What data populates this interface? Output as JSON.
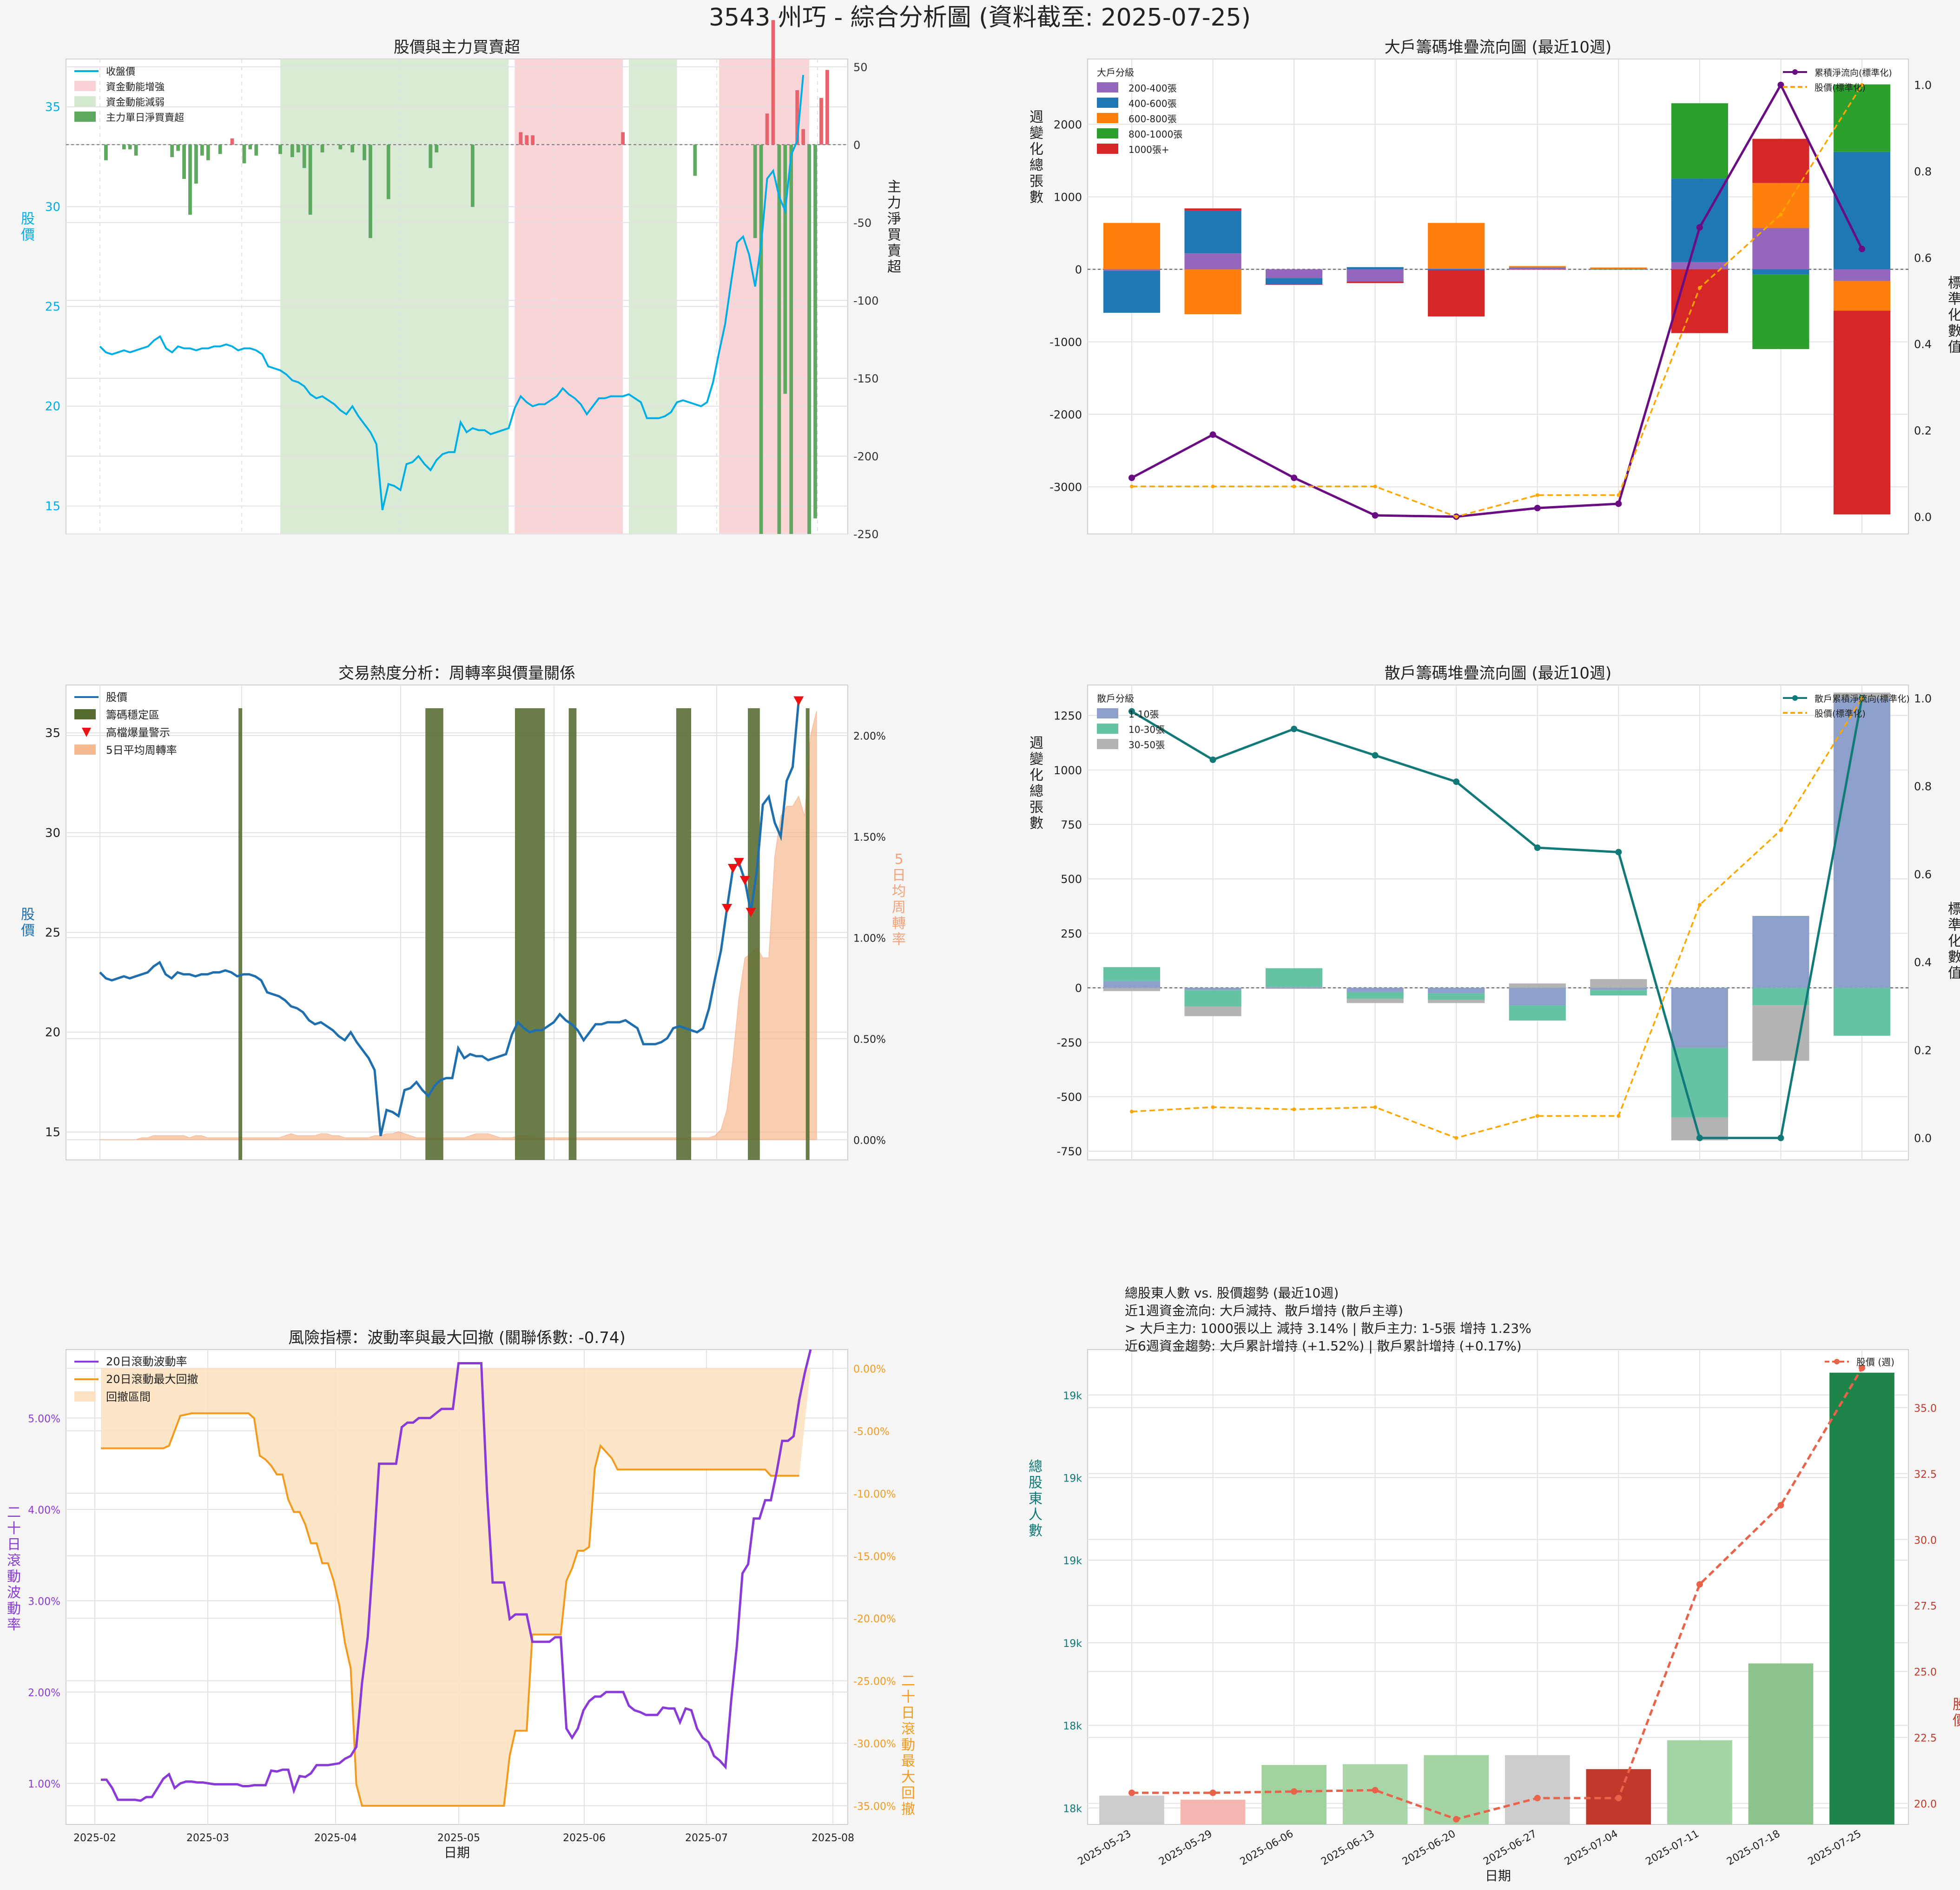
{
  "page_title": "3543 州巧 - 綜合分析圖 (資料截至: 2025-07-25)",
  "chart_data": [
    {
      "id": "p1",
      "type": "line+bar",
      "title": "股價與主力買賣超",
      "ylabel_left": "股價",
      "ylabel_right": "主力淨買賣超",
      "y_left": [
        13.6,
        37.4
      ],
      "y_left_ticks": [
        "15",
        "20",
        "25",
        "30",
        "35"
      ],
      "y_left_tick_values": [
        15,
        20,
        25,
        30,
        35
      ],
      "y_right": [
        -250,
        55
      ],
      "y_right_ticks": [
        "50",
        "0",
        "-50",
        "-100",
        "-150",
        "-200",
        "-250"
      ],
      "y_right_tick_values": [
        50,
        0,
        -50,
        -100,
        -150,
        -200,
        -250
      ],
      "legend": [
        "收盤價",
        "資金動能增強",
        "資金動能減弱",
        "主力單日淨買賣超"
      ],
      "price": [
        23,
        22.7,
        22.6,
        22.7,
        22.8,
        22.7,
        22.8,
        22.9,
        23,
        23.3,
        23.5,
        22.9,
        22.7,
        23,
        22.9,
        22.9,
        22.8,
        22.9,
        22.9,
        23,
        23,
        23.1,
        23,
        22.8,
        22.9,
        22.9,
        22.8,
        22.6,
        22,
        21.9,
        21.8,
        21.6,
        21.3,
        21.2,
        21,
        20.6,
        20.4,
        20.5,
        20.3,
        20.1,
        19.8,
        19.6,
        20,
        19.5,
        19.1,
        18.7,
        18.1,
        14.8,
        16.1,
        16,
        15.8,
        17.1,
        17.2,
        17.5,
        17.1,
        16.8,
        17.3,
        17.6,
        17.7,
        17.7,
        19.2,
        18.7,
        18.9,
        18.8,
        18.8,
        18.6,
        18.7,
        18.8,
        18.9,
        19.9,
        20.5,
        20.2,
        20,
        20.1,
        20.1,
        20.3,
        20.5,
        20.9,
        20.6,
        20.4,
        20.1,
        19.6,
        20,
        20.4,
        20.4,
        20.5,
        20.5,
        20.5,
        20.6,
        20.4,
        20.2,
        19.4,
        19.4,
        19.4,
        19.5,
        19.7,
        20.2,
        20.3,
        20.2,
        20.1,
        20,
        20.2,
        21.2,
        22.7,
        24.1,
        26.2,
        28.2,
        28.5,
        27.6,
        26,
        28.1,
        31.4,
        31.8,
        30.5,
        29.8,
        32.6,
        33.3,
        36.6
      ],
      "net": [
        0,
        -10,
        0,
        0,
        -3,
        -3,
        -7,
        0,
        0,
        0,
        0,
        0,
        -8,
        -4,
        -22,
        -45,
        -25,
        -7,
        -10,
        0,
        -6,
        0,
        4,
        0,
        -12,
        -3,
        -7,
        0,
        0,
        0,
        -6,
        0,
        -8,
        -5,
        -15,
        -45,
        0,
        -5,
        0,
        0,
        -3,
        0,
        -5,
        0,
        -10,
        -60,
        0,
        0,
        -35,
        0,
        0,
        0,
        0,
        0,
        0,
        -15,
        -5,
        0,
        0,
        0,
        0,
        0,
        -40,
        0,
        0,
        0,
        0,
        0,
        0,
        0,
        8,
        6,
        6,
        0,
        0,
        0,
        0,
        0,
        0,
        0,
        0,
        0,
        0,
        0,
        0,
        0,
        0,
        8,
        0,
        0,
        0,
        0,
        0,
        0,
        0,
        0,
        0,
        0,
        0,
        -20,
        0,
        0,
        0,
        0,
        0,
        0,
        0,
        0,
        0,
        -60,
        -250,
        20,
        80,
        -250,
        -160,
        -250,
        35,
        10,
        -250,
        -240,
        30,
        48
      ],
      "bands": [
        {
          "kind": "down",
          "from": 30,
          "to": 68
        },
        {
          "kind": "up",
          "from": 69,
          "to": 87
        },
        {
          "kind": "down",
          "from": 88,
          "to": 96
        },
        {
          "kind": "up",
          "from": 103,
          "to": 118
        }
      ]
    },
    {
      "id": "p2",
      "type": "stacked-bar+line",
      "title": "大戶籌碼堆疊流向圖 (最近10週)",
      "ylabel_left": "週變化總張數",
      "ylabel_right": "標準化數值",
      "y_left": [
        -3650,
        2900
      ],
      "y_left_ticks": [
        "-3000",
        "-2000",
        "-1000",
        "0",
        "1000",
        "2000"
      ],
      "y_left_tick_values": [
        -3000,
        -2000,
        -1000,
        0,
        1000,
        2000
      ],
      "y_right": [
        -0.04,
        1.06
      ],
      "y_right_ticks": [
        "0.0",
        "0.2",
        "0.4",
        "0.6",
        "0.8",
        "1.0"
      ],
      "y_right_tick_values": [
        0,
        0.2,
        0.4,
        0.6,
        0.8,
        1.0
      ],
      "legend_title": "大戶分級",
      "series": [
        {
          "name": "200-400張",
          "color": "#9467bd",
          "values": [
            -20,
            220,
            -120,
            -170,
            10,
            20,
            5,
            100,
            570,
            -160
          ]
        },
        {
          "name": "400-600張",
          "color": "#1f77b4",
          "values": [
            -580,
            590,
            -90,
            30,
            -10,
            5,
            -5,
            1150,
            -70,
            1620
          ]
        },
        {
          "name": "600-800張",
          "color": "#ff7f0e",
          "values": [
            640,
            -620,
            0,
            0,
            630,
            20,
            20,
            0,
            620,
            -410
          ]
        },
        {
          "name": "800-1000張",
          "color": "#2ca02c",
          "values": [
            0,
            0,
            0,
            0,
            0,
            0,
            0,
            1040,
            -1030,
            930
          ]
        },
        {
          "name": "1000張+",
          "color": "#d62728",
          "values": [
            0,
            30,
            -5,
            -20,
            -640,
            -5,
            0,
            -880,
            610,
            -2810
          ]
        }
      ],
      "line_series": [
        {
          "name": "累積淨流向(標準化)",
          "color": "#6a0d83",
          "values": [
            0.09,
            0.19,
            0.09,
            0.003,
            0,
            0.02,
            0.03,
            0.67,
            1.0,
            0.62
          ]
        },
        {
          "name": "股價(標準化)",
          "color": "#ffa500",
          "values": [
            0.07,
            0.07,
            0.07,
            0.07,
            0.0,
            0.05,
            0.05,
            0.53,
            0.7,
            1.0
          ]
        }
      ]
    },
    {
      "id": "p3",
      "type": "line+area",
      "title": "交易熱度分析：周轉率與價量關係",
      "ylabel_left": "股價",
      "ylabel_right": "5日均周轉率",
      "y_left": [
        13.6,
        37.4
      ],
      "y_left_ticks": [
        "15",
        "20",
        "25",
        "30",
        "35"
      ],
      "y_left_tick_values": [
        15,
        20,
        25,
        30,
        35
      ],
      "y_right": [
        -0.1,
        2.25
      ],
      "y_right_ticks": [
        "0.00%",
        "0.50%",
        "1.00%",
        "1.50%",
        "2.00%"
      ],
      "y_right_tick_values": [
        0,
        0.5,
        1.0,
        1.5,
        2.0
      ],
      "legend": [
        "股價",
        "籌碼穩定區",
        "高檔爆量警示",
        "5日平均周轉率"
      ],
      "stable_zones": [
        [
          23.2,
          23.8
        ],
        [
          54.5,
          57.5
        ],
        [
          69.5,
          74.5
        ],
        [
          78.5,
          79.8
        ],
        [
          96.5,
          99
        ],
        [
          108.5,
          110.5
        ],
        [
          118.2,
          118.8
        ]
      ],
      "alert_idx": [
        105,
        106,
        107,
        108,
        109,
        117,
        119,
        122
      ],
      "turnover": [
        0,
        0,
        0,
        0,
        0,
        0,
        0,
        0.01,
        0.01,
        0.02,
        0.02,
        0.02,
        0.02,
        0.02,
        0.02,
        0.01,
        0.02,
        0.02,
        0.01,
        0.01,
        0.01,
        0.01,
        0.01,
        0.01,
        0.01,
        0.01,
        0.01,
        0.01,
        0.01,
        0.01,
        0.01,
        0.02,
        0.03,
        0.02,
        0.02,
        0.02,
        0.02,
        0.03,
        0.03,
        0.02,
        0.02,
        0.01,
        0.01,
        0.01,
        0.01,
        0.01,
        0.02,
        0.02,
        0.03,
        0.03,
        0.04,
        0.03,
        0.02,
        0.01,
        0.01,
        0.01,
        0.01,
        0.01,
        0.01,
        0.01,
        0.01,
        0.01,
        0.02,
        0.03,
        0.03,
        0.03,
        0.02,
        0.01,
        0.01,
        0.01,
        0.02,
        0.02,
        0.02,
        0.01,
        0.01,
        0.01,
        0.01,
        0.01,
        0.01,
        0.01,
        0.01,
        0.01,
        0.01,
        0.01,
        0.01,
        0.01,
        0.01,
        0.01,
        0.01,
        0.01,
        0.01,
        0.01,
        0.01,
        0.01,
        0.01,
        0.01,
        0.01,
        0.01,
        0.01,
        0.01,
        0.01,
        0.01,
        0.01,
        0.02,
        0.05,
        0.15,
        0.4,
        0.7,
        0.9,
        0.92,
        0.95,
        0.9,
        0.9,
        1.4,
        1.6,
        1.65,
        1.65,
        1.7,
        1.6,
        2.0,
        2.12
      ]
    },
    {
      "id": "p4",
      "type": "stacked-bar+line",
      "title": "散戶籌碼堆疊流向圖 (最近10週)",
      "ylabel_left": "週變化總張數",
      "ylabel_right": "標準化數值",
      "y_left": [
        -790,
        1390
      ],
      "y_left_ticks": [
        "-750",
        "-500",
        "-250",
        "0",
        "250",
        "500",
        "750",
        "1000",
        "1250"
      ],
      "y_left_tick_values": [
        -750,
        -500,
        -250,
        0,
        250,
        500,
        750,
        1000,
        1250
      ],
      "y_right": [
        -0.05,
        1.03
      ],
      "y_right_ticks": [
        "0.0",
        "0.2",
        "0.4",
        "0.6",
        "0.8",
        "1.0"
      ],
      "y_right_tick_values": [
        0,
        0.2,
        0.4,
        0.6,
        0.8,
        1.0
      ],
      "legend_title": "散戶分級",
      "series": [
        {
          "name": "1-10張",
          "color": "#8da0cb",
          "values": [
            30,
            -10,
            5,
            -20,
            -25,
            -80,
            -10,
            -275,
            330,
            1330
          ]
        },
        {
          "name": "10-30張",
          "color": "#66c2a5",
          "values": [
            65,
            -75,
            85,
            -30,
            -30,
            -70,
            -25,
            -320,
            -80,
            -220
          ]
        },
        {
          "name": "30-50張",
          "color": "#b3b3b3",
          "values": [
            -15,
            -45,
            -5,
            -20,
            -15,
            20,
            40,
            -105,
            -255,
            25
          ]
        }
      ],
      "line_series": [
        {
          "name": "散戶累積淨流向(標準化)",
          "color": "#117a78",
          "values": [
            0.97,
            0.86,
            0.93,
            0.87,
            0.81,
            0.66,
            0.65,
            0.0,
            0.0,
            1.0
          ]
        },
        {
          "name": "股價(標準化)",
          "color": "#ffa500",
          "values": [
            0.06,
            0.07,
            0.065,
            0.07,
            0.0,
            0.05,
            0.05,
            0.53,
            0.7,
            1.0
          ]
        }
      ]
    },
    {
      "id": "p5",
      "type": "line+area",
      "title": "風險指標：波動率與最大回撤 (關聯係數: -0.74)",
      "xlabel": "日期",
      "ylabel_left": "二十日滾動波動率",
      "ylabel_right": "二十日滾動最大回撤",
      "y_left": [
        0.55,
        5.75
      ],
      "y_left_ticks": [
        "1.00%",
        "2.00%",
        "3.00%",
        "4.00%",
        "5.00%"
      ],
      "y_left_tick_values": [
        1,
        2,
        3,
        4,
        5
      ],
      "y_right": [
        -36.5,
        1.5
      ],
      "y_right_ticks": [
        "0.00%",
        "-5.00%",
        "-10.00%",
        "-15.00%",
        "-20.00%",
        "-25.00%",
        "-30.00%",
        "-35.00%"
      ],
      "y_right_tick_values": [
        0,
        -5,
        -10,
        -15,
        -20,
        -25,
        -30,
        -35
      ],
      "x_ticks": [
        "2025-02",
        "2025-03",
        "2025-04",
        "2025-05",
        "2025-06",
        "2025-07",
        "2025-08"
      ],
      "legend": [
        "20日滾動波動率",
        "20日滾動最大回撤",
        "回撤區間"
      ],
      "volatility": [
        1.04,
        1.04,
        0.95,
        0.82,
        0.82,
        0.82,
        0.82,
        0.81,
        0.85,
        0.85,
        0.95,
        1.05,
        1.1,
        0.95,
        1.0,
        1.02,
        1.02,
        1.01,
        1.01,
        1.0,
        0.99,
        0.99,
        0.99,
        0.99,
        0.99,
        0.97,
        0.97,
        0.98,
        0.98,
        0.98,
        1.14,
        1.13,
        1.15,
        1.15,
        0.92,
        1.08,
        1.07,
        1.11,
        1.2,
        1.2,
        1.2,
        1.21,
        1.22,
        1.27,
        1.3,
        1.4,
        2.1,
        2.6,
        3.5,
        4.5,
        4.5,
        4.5,
        4.5,
        4.9,
        4.95,
        4.95,
        5.0,
        5.0,
        5.0,
        5.05,
        5.1,
        5.1,
        5.1,
        5.6,
        5.6,
        5.6,
        5.6,
        5.6,
        4.2,
        3.2,
        3.2,
        3.2,
        2.8,
        2.85,
        2.85,
        2.85,
        2.55,
        2.55,
        2.55,
        2.55,
        2.6,
        2.6,
        1.6,
        1.5,
        1.6,
        1.8,
        1.9,
        1.95,
        1.95,
        2.0,
        2.0,
        2.0,
        2.0,
        1.85,
        1.8,
        1.78,
        1.75,
        1.75,
        1.75,
        1.83,
        1.82,
        1.82,
        1.67,
        1.82,
        1.8,
        1.6,
        1.5,
        1.45,
        1.3,
        1.25,
        1.18,
        1.9,
        2.5,
        3.3,
        3.4,
        3.9,
        3.9,
        4.1,
        4.1,
        4.4,
        4.75,
        4.75,
        4.8,
        5.2,
        5.5,
        5.75
      ],
      "drawdown": [
        -6.4,
        -6.4,
        -6.4,
        -6.4,
        -6.4,
        -6.4,
        -6.4,
        -6.4,
        -6.4,
        -6.4,
        -6.4,
        -6.4,
        -6.2,
        -5,
        -3.8,
        -3.7,
        -3.6,
        -3.6,
        -3.6,
        -3.6,
        -3.6,
        -3.6,
        -3.6,
        -3.6,
        -3.6,
        -3.6,
        -3.6,
        -4,
        -7,
        -7.3,
        -7.8,
        -8.5,
        -8.5,
        -10.5,
        -11.5,
        -11.5,
        -12.5,
        -14,
        -14,
        -15.6,
        -15.6,
        -17,
        -19,
        -22,
        -24,
        -33.3,
        -35,
        -35,
        -35,
        -35,
        -35,
        -35,
        -35,
        -35,
        -35,
        -35,
        -35,
        -35,
        -35,
        -35,
        -35,
        -35,
        -35,
        -35,
        -35,
        -35,
        -35,
        -35,
        -35,
        -35,
        -35,
        -35,
        -31,
        -29,
        -29,
        -29,
        -21.3,
        -21.3,
        -21.3,
        -21.3,
        -21.3,
        -21.3,
        -17,
        -16,
        -14.6,
        -14.6,
        -14.3,
        -8,
        -6.2,
        -6.7,
        -7.2,
        -8.1,
        -8.1,
        -8.1,
        -8.1,
        -8.1,
        -8.1,
        -8.1,
        -8.1,
        -8.1,
        -8.1,
        -8.1,
        -8.1,
        -8.1,
        -8.1,
        -8.1,
        -8.1,
        -8.1,
        -8.1,
        -8.1,
        -8.1,
        -8.1,
        -8.1,
        -8.1,
        -8.1,
        -8.1,
        -8.1,
        -8.1,
        -8.6,
        -8.6,
        -8.6,
        -8.6,
        -8.6,
        -8.6
      ]
    },
    {
      "id": "p6",
      "type": "bar+line",
      "title_lines": [
        "總股東人數 vs. 股價趨勢 (最近10週)",
        "近1週資金流向: 大戶減持、散戶增持 (散戶主導)",
        " > 大戶主力: 1000張以上 減持 3.14% | 散戶主力: 1-5張 增持 1.23%",
        "近6週資金趨勢: 大戶累計增持 (+1.52%) | 散戶累計增持 (+0.17%)"
      ],
      "xlabel": "日期",
      "ylabel_left": "總股東人數",
      "ylabel_right": "股價",
      "categories": [
        "2025-05-23",
        "2025-05-29",
        "2025-06-06",
        "2025-06-13",
        "2025-06-20",
        "2025-06-27",
        "2025-07-04",
        "2025-07-11",
        "2025-07-18",
        "2025-07-25"
      ],
      "bar_colors": [
        "#cccccc",
        "#f4b6ae",
        "#9fd29f",
        "#a8d6a8",
        "#a4d3a4",
        "#cccccc",
        "#c0392b",
        "#a4d3a4",
        "#8cc48c",
        "#1e8449"
      ],
      "shareholders": [
        17985,
        17980,
        18022,
        18023,
        18034,
        18034,
        18017,
        18052,
        18145,
        18497
      ],
      "y_left": [
        17950,
        18525
      ],
      "y_left_ticks": [
        "18k",
        "18k",
        "19k",
        "19k",
        "19k",
        "19k"
      ],
      "y_left_tick_values": [
        17970,
        18070,
        18170,
        18270,
        18370,
        18470
      ],
      "y_right": [
        19.2,
        37.2
      ],
      "y_right_ticks": [
        "20.0",
        "22.5",
        "25.0",
        "27.5",
        "30.0",
        "32.5",
        "35.0"
      ],
      "y_right_tick_values": [
        20,
        22.5,
        25,
        27.5,
        30,
        32.5,
        35
      ],
      "legend": [
        "股價 (週)"
      ],
      "price": [
        20.4,
        20.4,
        20.45,
        20.5,
        19.4,
        20.2,
        20.2,
        28.3,
        31.3,
        36.5
      ]
    }
  ]
}
